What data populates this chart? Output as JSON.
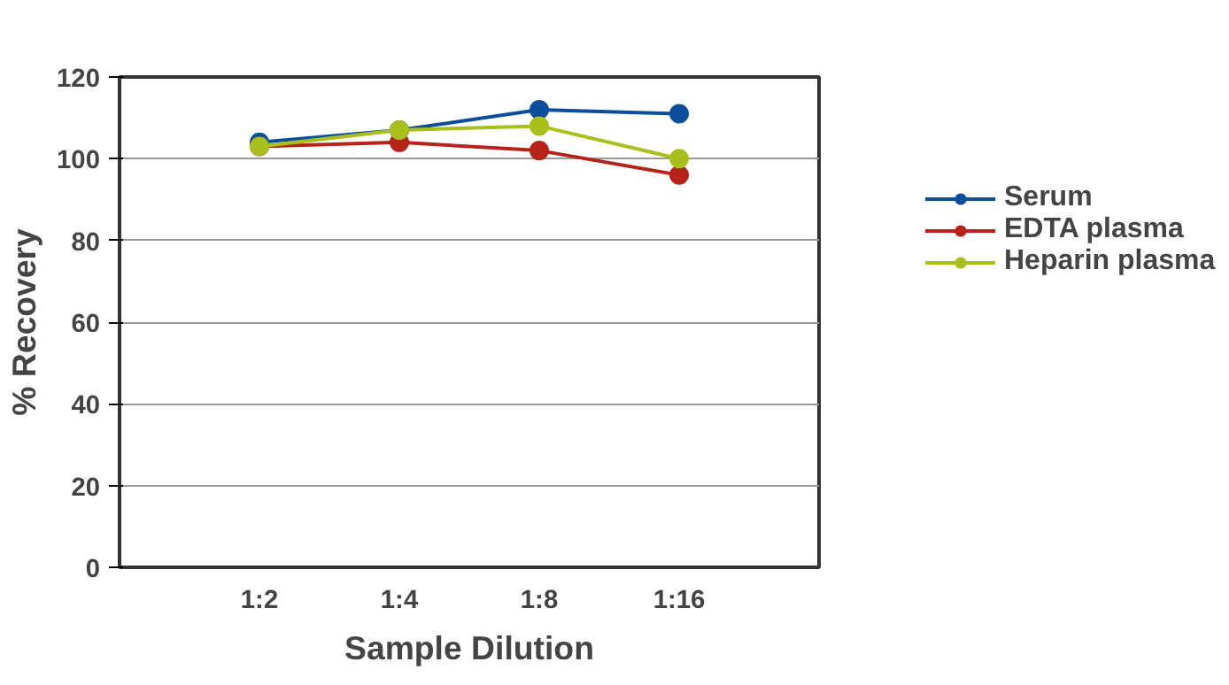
{
  "chart_data": {
    "type": "line",
    "xlabel": "Sample Dilution",
    "ylabel": "% Recovery",
    "categories": [
      "1:2",
      "1:4",
      "1:8",
      "1:16"
    ],
    "series": [
      {
        "name": "Serum",
        "color": "#0b4f9c",
        "values": [
          104,
          107,
          112,
          111
        ]
      },
      {
        "name": "EDTA plasma",
        "color": "#b5231b",
        "values": [
          103,
          104,
          102,
          96
        ]
      },
      {
        "name": "Heparin plasma",
        "color": "#a9c01c",
        "values": [
          103,
          107,
          108,
          100
        ]
      }
    ],
    "ylim": [
      0,
      120
    ],
    "yticks": [
      0,
      20,
      40,
      60,
      80,
      100,
      120
    ],
    "grid": "y",
    "legend": "right",
    "marker": "circle",
    "line_style": "solid"
  }
}
